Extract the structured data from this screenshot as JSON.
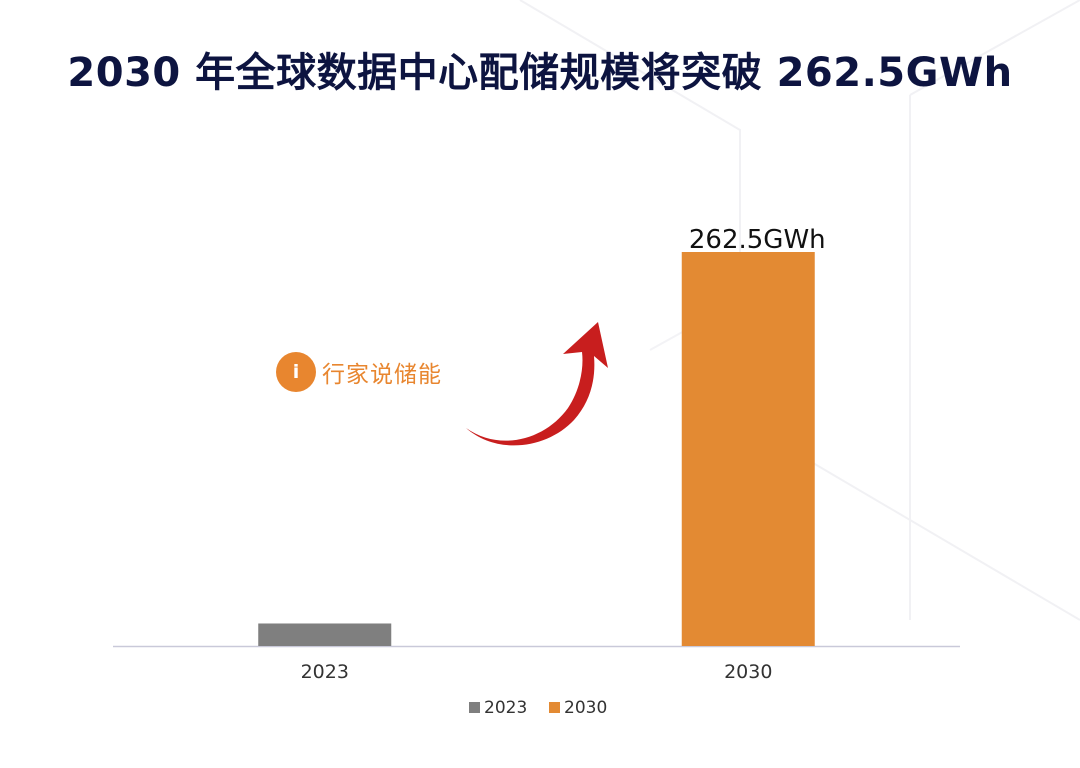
{
  "title": "2030 年全球数据中心配储规模将突破 262.5GWh",
  "brand": {
    "mark": "i",
    "name": "行家说储能"
  },
  "chart_data": {
    "type": "bar",
    "categories": [
      "2023",
      "2030"
    ],
    "series": [
      {
        "name": "2023",
        "values": [
          15,
          null
        ],
        "color": "#7f7f7f"
      },
      {
        "name": "2030",
        "values": [
          null,
          262.5
        ],
        "color": "#e38a33"
      }
    ],
    "data_labels": [
      "",
      "262.5GWh"
    ],
    "ylim": [
      0,
      262.5
    ],
    "grid": false,
    "legend": "bottom",
    "annotation": "red curved arrow pointing up toward the 2030 bar"
  },
  "colors": {
    "title": "#0d1440",
    "axis": "#c9c9d9",
    "arrow": "#c81e1e"
  }
}
